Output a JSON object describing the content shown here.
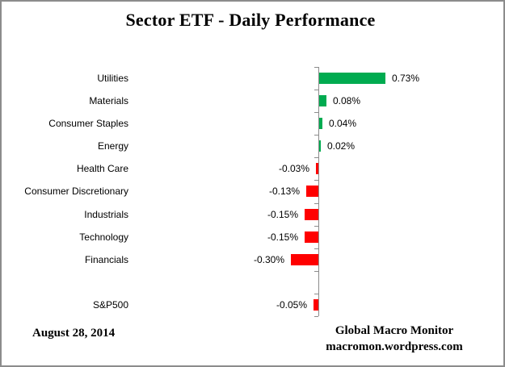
{
  "title": "Sector ETF - Daily Performance",
  "footer": {
    "date": "August 28, 2014",
    "credit_line1": "Global Macro Monitor",
    "credit_line2": "macromon.wordpress.com"
  },
  "colors": {
    "positive_bar": "#00AB50",
    "negative_bar": "#FF0000",
    "axis": "#8C8C8C",
    "frame_border": "#8C8C8C",
    "text": "#000000",
    "background": "#FFFFFF"
  },
  "chart_data": {
    "type": "bar",
    "orientation": "horizontal",
    "title": "Sector ETF - Daily Performance",
    "xlabel": "",
    "ylabel": "",
    "value_unit": "percent",
    "grid": false,
    "legend": false,
    "axis_range_hint": [
      -0.4,
      2.0
    ],
    "categories": [
      "Utilities",
      "Materials",
      "Consumer Staples",
      "Energy",
      "Health Care",
      "Consumer Discretionary",
      "Industrials",
      "Technology",
      "Financials",
      "",
      "S&P500"
    ],
    "values": [
      0.73,
      0.08,
      0.04,
      0.02,
      -0.03,
      -0.13,
      -0.15,
      -0.15,
      -0.3,
      null,
      -0.05
    ],
    "data_labels": [
      "0.73%",
      "0.08%",
      "0.04%",
      "0.02%",
      "-0.03%",
      "-0.13%",
      "-0.15%",
      "-0.15%",
      "-0.30%",
      "",
      "-0.05%"
    ]
  }
}
